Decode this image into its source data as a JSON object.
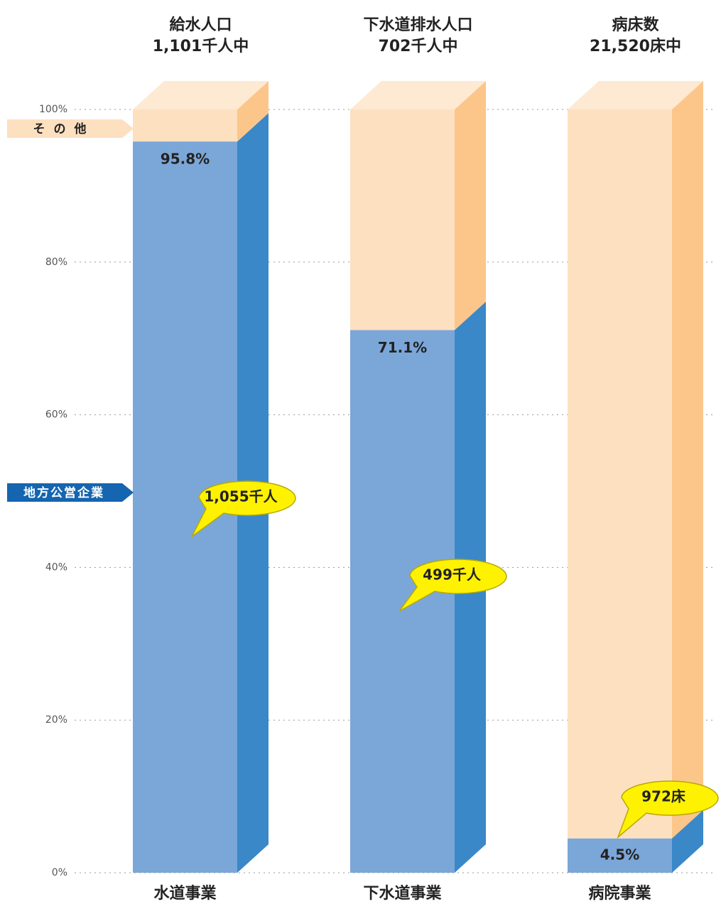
{
  "chart_data": {
    "type": "bar",
    "stacked": true,
    "column_titles": [
      [
        "給水人口",
        "1,101千人中"
      ],
      [
        "下水道排水人口",
        "702千人中"
      ],
      [
        "病床数",
        "21,520床中"
      ]
    ],
    "categories": [
      "水道事業",
      "下水道事業",
      "病院事業"
    ],
    "series": [
      {
        "name": "地方公営企業",
        "color": "#7ba6d8",
        "side_color": "#3a88c8",
        "values": [
          95.8,
          71.1,
          4.5
        ],
        "value_labels": [
          "95.8%",
          "71.1%",
          "4.5%"
        ]
      },
      {
        "name": "その他",
        "color": "#fde0c0",
        "side_color": "#fcc68a",
        "values": [
          4.2,
          28.9,
          95.5
        ]
      }
    ],
    "annotations": [
      "1,055千人",
      "499千人",
      "972床"
    ],
    "ylim": [
      0,
      100
    ],
    "yticks": [
      {
        "value": 0,
        "label": "0%"
      },
      {
        "value": 20,
        "label": "20%"
      },
      {
        "value": 40,
        "label": "40%"
      },
      {
        "value": 60,
        "label": "60%"
      },
      {
        "value": 80,
        "label": "80%"
      },
      {
        "value": 100,
        "label": "100%"
      }
    ],
    "grid": true
  }
}
